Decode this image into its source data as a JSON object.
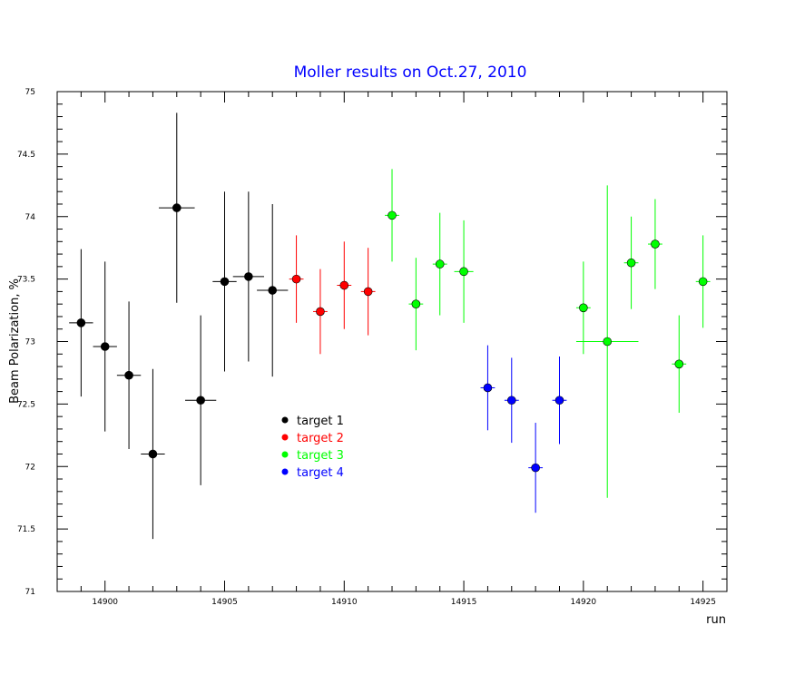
{
  "chart_data": {
    "type": "scatter",
    "title": "Moller results on Oct.27, 2010",
    "xlabel": "run",
    "ylabel": "Beam Polarization, %",
    "xlim": [
      14898,
      14926
    ],
    "ylim": [
      71,
      75
    ],
    "xticks": [
      14900,
      14905,
      14910,
      14915,
      14920,
      14925
    ],
    "xtick_labels": [
      "14900",
      "14905",
      "14910",
      "14915",
      "14920",
      "14925"
    ],
    "yticks": [
      71,
      71.5,
      72,
      72.5,
      73,
      73.5,
      74,
      74.5,
      75
    ],
    "ytick_labels": [
      "71",
      "71.5",
      "72",
      "72.5",
      "73",
      "73.5",
      "74",
      "74.5",
      "75"
    ],
    "legend_position": "center-left",
    "series": [
      {
        "name": "target 1",
        "color": "#000000",
        "points": [
          {
            "x": 14899,
            "y": 73.15,
            "yerr": 0.59,
            "xerr": 0.5
          },
          {
            "x": 14900,
            "y": 72.96,
            "yerr": 0.68,
            "xerr": 0.5
          },
          {
            "x": 14901,
            "y": 72.73,
            "yerr": 0.59,
            "xerr": 0.5
          },
          {
            "x": 14902,
            "y": 72.1,
            "yerr": 0.68,
            "xerr": 0.5
          },
          {
            "x": 14903,
            "y": 74.07,
            "yerr": 0.76,
            "xerr": 0.75
          },
          {
            "x": 14904,
            "y": 72.53,
            "yerr": 0.68,
            "xerr": 0.65
          },
          {
            "x": 14905,
            "y": 73.48,
            "yerr": 0.72,
            "xerr": 0.5
          },
          {
            "x": 14906,
            "y": 73.52,
            "yerr": 0.68,
            "xerr": 0.65
          },
          {
            "x": 14907,
            "y": 73.41,
            "yerr": 0.69,
            "xerr": 0.65
          }
        ]
      },
      {
        "name": "target 2",
        "color": "#ff0000",
        "points": [
          {
            "x": 14908,
            "y": 73.5,
            "yerr": 0.35,
            "xerr": 0.3
          },
          {
            "x": 14909,
            "y": 73.24,
            "yerr": 0.34,
            "xerr": 0.3
          },
          {
            "x": 14910,
            "y": 73.45,
            "yerr": 0.35,
            "xerr": 0.3
          },
          {
            "x": 14911,
            "y": 73.4,
            "yerr": 0.35,
            "xerr": 0.3
          }
        ]
      },
      {
        "name": "target 3",
        "color": "#00ff00",
        "points": [
          {
            "x": 14912,
            "y": 74.01,
            "yerr": 0.37,
            "xerr": 0.3
          },
          {
            "x": 14913,
            "y": 73.3,
            "yerr": 0.37,
            "xerr": 0.3
          },
          {
            "x": 14914,
            "y": 73.62,
            "yerr": 0.41,
            "xerr": 0.3
          },
          {
            "x": 14915,
            "y": 73.56,
            "yerr": 0.41,
            "xerr": 0.4
          },
          {
            "x": 14920,
            "y": 73.27,
            "yerr": 0.37,
            "xerr": 0.3
          },
          {
            "x": 14921,
            "y": 73.0,
            "yerr": 1.25,
            "xerr": 1.3
          },
          {
            "x": 14922,
            "y": 73.63,
            "yerr": 0.37,
            "xerr": 0.3
          },
          {
            "x": 14923,
            "y": 73.78,
            "yerr": 0.36,
            "xerr": 0.3
          },
          {
            "x": 14924,
            "y": 72.82,
            "yerr": 0.39,
            "xerr": 0.3
          },
          {
            "x": 14925,
            "y": 73.48,
            "yerr": 0.37,
            "xerr": 0.3
          }
        ]
      },
      {
        "name": "target 4",
        "color": "#0000ff",
        "points": [
          {
            "x": 14916,
            "y": 72.63,
            "yerr": 0.34,
            "xerr": 0.3
          },
          {
            "x": 14917,
            "y": 72.53,
            "yerr": 0.34,
            "xerr": 0.3
          },
          {
            "x": 14918,
            "y": 71.99,
            "yerr": 0.36,
            "xerr": 0.3
          },
          {
            "x": 14919,
            "y": 72.53,
            "yerr": 0.35,
            "xerr": 0.3
          }
        ]
      }
    ]
  }
}
